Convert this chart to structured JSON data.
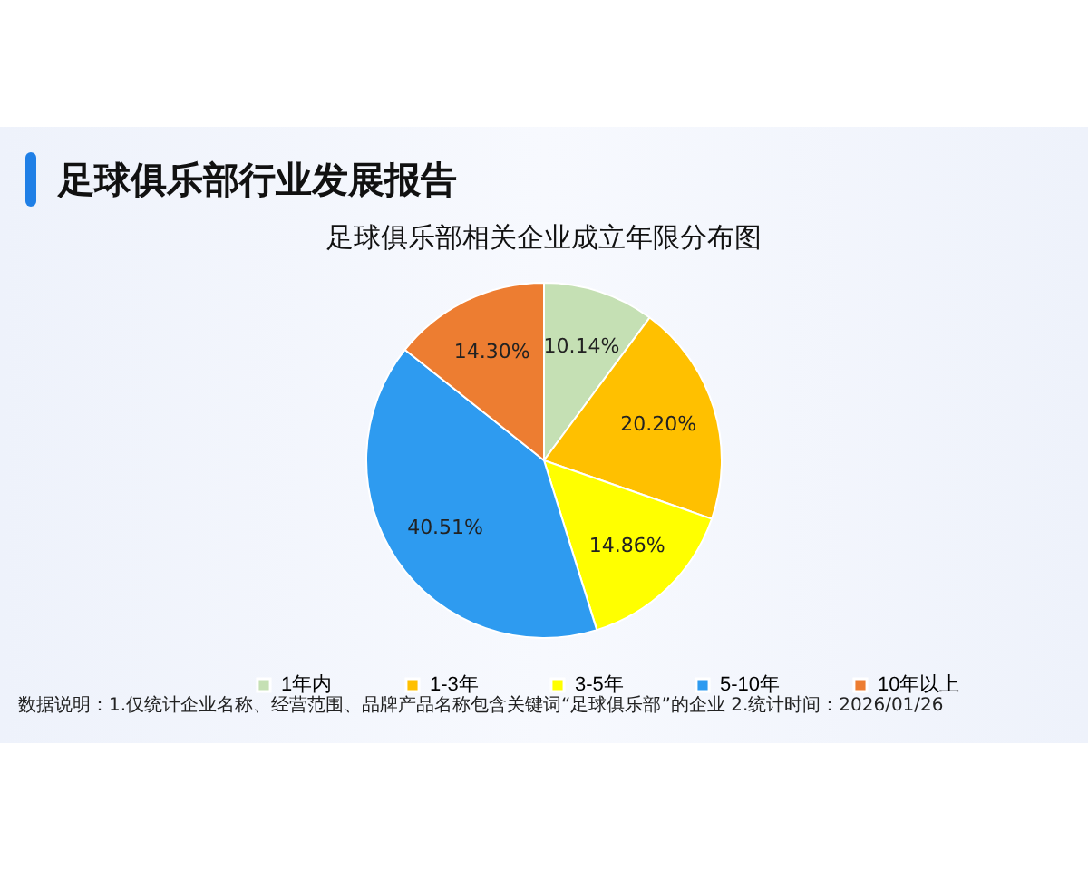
{
  "chart_data": {
    "type": "pie",
    "title": "足球俱乐部行业发展报告",
    "subtitle": "足球俱乐部相关企业成立年限分布图",
    "categories": [
      "1年内",
      "1-3年",
      "3-5年",
      "5-10年",
      "10年以上"
    ],
    "values": [
      10.14,
      20.2,
      14.86,
      40.51,
      14.3
    ],
    "value_labels": [
      "10.14%",
      "20.20%",
      "14.86%",
      "40.51%",
      "14.30%"
    ],
    "colors": [
      "#c5e0b4",
      "#ffc000",
      "#ffff00",
      "#2e9bf0",
      "#ed7d31"
    ],
    "legend": "bottom",
    "annotations": [
      "数据说明：1.仅统计企业名称、经营范围、品牌产品名称包含关键词“足球俱乐部”的企业  2.统计时间：2026/01/26"
    ]
  }
}
